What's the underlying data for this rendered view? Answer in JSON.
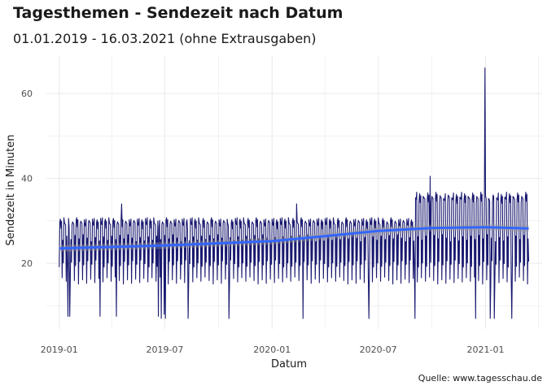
{
  "chart_data": {
    "type": "line",
    "title": "Tagesthemen - Sendezeit nach Datum",
    "subtitle": "01.01.2019 - 16.03.2021 (ohne Extrausgaben)",
    "caption": "Quelle: www.tagesschau.de",
    "xlabel": "Datum",
    "ylabel": "Sendezeit in Minuten",
    "x_range": [
      "2018-12-10",
      "2021-04-08"
    ],
    "x_ticks": [
      "2019-01",
      "2019-07",
      "2020-01",
      "2020-07",
      "2021-01"
    ],
    "ylim": [
      4.5,
      69
    ],
    "y_ticks": [
      20,
      40,
      60
    ],
    "grid": true,
    "colors": {
      "series": "#191970",
      "smooth": "#3366ff",
      "band": "#999999",
      "grid": "#ebebeb"
    },
    "series": [
      {
        "style": "daily-line",
        "x_start": "2019-01-01",
        "x_end": "2021-03-16",
        "weekly_pattern": [
          20,
          30,
          30,
          29,
          30,
          16,
          26
        ],
        "weekly_pattern_after_2020-09": [
          20,
          35,
          36,
          35,
          36,
          16,
          26
        ],
        "spikes": [
          {
            "x": "2020-12-31",
            "y": 66
          },
          {
            "x": "2020-09-28",
            "y": 40.5
          },
          {
            "x": "2019-04-18",
            "y": 34
          },
          {
            "x": "2020-02-12",
            "y": 34
          }
        ],
        "dips": [
          {
            "x": "2019-01-16",
            "y": 7.5
          },
          {
            "x": "2019-01-19",
            "y": 7.5
          },
          {
            "x": "2019-03-12",
            "y": 7.5
          },
          {
            "x": "2019-04-09",
            "y": 7.5
          },
          {
            "x": "2019-06-20",
            "y": 7.5
          },
          {
            "x": "2019-06-25",
            "y": 7
          },
          {
            "x": "2019-06-30",
            "y": 8
          },
          {
            "x": "2019-07-02",
            "y": 7
          },
          {
            "x": "2019-08-10",
            "y": 7
          },
          {
            "x": "2019-10-19",
            "y": 7
          },
          {
            "x": "2020-02-23",
            "y": 7
          },
          {
            "x": "2020-06-15",
            "y": 7
          },
          {
            "x": "2020-09-02",
            "y": 7
          },
          {
            "x": "2020-12-15",
            "y": 7
          },
          {
            "x": "2021-01-09",
            "y": 7
          },
          {
            "x": "2021-01-16",
            "y": 7
          },
          {
            "x": "2021-02-15",
            "y": 7
          }
        ]
      },
      {
        "style": "smooth",
        "points": [
          {
            "x": "2019-01-01",
            "y": 23.5
          },
          {
            "x": "2019-07-01",
            "y": 24.2
          },
          {
            "x": "2020-01-01",
            "y": 25.2
          },
          {
            "x": "2020-07-01",
            "y": 27.6
          },
          {
            "x": "2020-10-01",
            "y": 28.3
          },
          {
            "x": "2021-01-01",
            "y": 28.5
          },
          {
            "x": "2021-03-16",
            "y": 28.2
          }
        ]
      }
    ]
  }
}
